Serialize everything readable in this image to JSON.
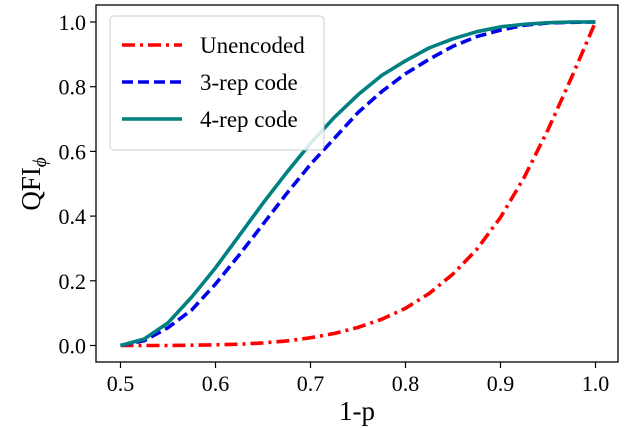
{
  "chart_data": {
    "type": "line",
    "xlabel": "1-p",
    "ylabel": "QFI",
    "ylabel_subscript": "ϕ",
    "xlim": [
      0.5,
      1.0
    ],
    "ylim": [
      0.0,
      1.0
    ],
    "xticks": [
      "0.5",
      "0.6",
      "0.7",
      "0.8",
      "0.9",
      "1.0"
    ],
    "yticks": [
      "0.0",
      "0.2",
      "0.4",
      "0.6",
      "0.8",
      "1.0"
    ],
    "grid": false,
    "legend_position": "top-left",
    "x": [
      0.5,
      0.525,
      0.55,
      0.575,
      0.6,
      0.625,
      0.65,
      0.675,
      0.7,
      0.725,
      0.75,
      0.775,
      0.8,
      0.825,
      0.85,
      0.875,
      0.9,
      0.925,
      0.95,
      0.975,
      1.0
    ],
    "series": [
      {
        "name": "Unencoded",
        "color": "#ff0000",
        "style": "dashdot",
        "values": [
          0.0,
          0.0,
          0.0,
          0.001,
          0.002,
          0.004,
          0.008,
          0.014,
          0.024,
          0.037,
          0.056,
          0.081,
          0.115,
          0.161,
          0.221,
          0.297,
          0.396,
          0.52,
          0.667,
          0.83,
          1.0
        ]
      },
      {
        "name": "3-rep code",
        "color": "#0000ee",
        "style": "dashed",
        "values": [
          0.0,
          0.015,
          0.055,
          0.11,
          0.19,
          0.28,
          0.375,
          0.47,
          0.56,
          0.64,
          0.72,
          0.785,
          0.84,
          0.885,
          0.925,
          0.955,
          0.975,
          0.99,
          0.997,
          0.999,
          1.0
        ]
      },
      {
        "name": "4-rep code",
        "color": "#008080",
        "style": "solid",
        "values": [
          0.0,
          0.02,
          0.07,
          0.15,
          0.24,
          0.34,
          0.44,
          0.535,
          0.625,
          0.705,
          0.775,
          0.835,
          0.88,
          0.92,
          0.948,
          0.97,
          0.985,
          0.993,
          0.998,
          1.0,
          1.0
        ]
      }
    ]
  }
}
